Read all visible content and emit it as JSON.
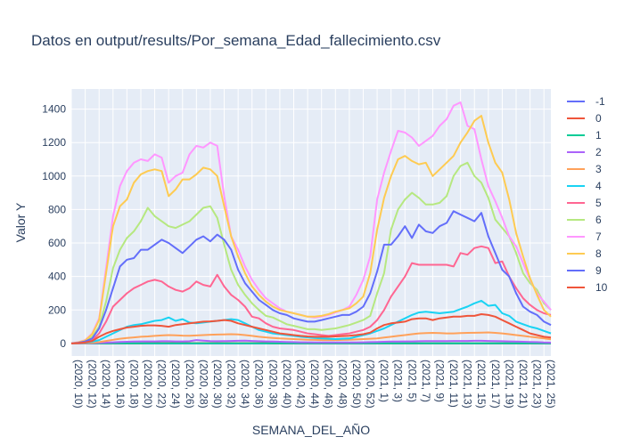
{
  "chart_data": {
    "type": "line",
    "title": "Datos en output/results/Por_semana_Edad_fallecimiento.csv",
    "xlabel": "SEMANA_DEL_AÑO",
    "ylabel": "Valor Y",
    "ylim": [
      -75,
      1520
    ],
    "yticks": [
      0,
      200,
      400,
      600,
      800,
      1000,
      1200,
      1400
    ],
    "grid": true,
    "legend_position": "right",
    "x_tick_labels": [
      "(2020, 10)",
      "(2020, 12)",
      "(2020, 14)",
      "(2020, 16)",
      "(2020, 18)",
      "(2020, 20)",
      "(2020, 22)",
      "(2020, 24)",
      "(2020, 26)",
      "(2020, 28)",
      "(2020, 30)",
      "(2020, 32)",
      "(2020, 34)",
      "(2020, 36)",
      "(2020, 38)",
      "(2020, 40)",
      "(2020, 42)",
      "(2020, 44)",
      "(2020, 46)",
      "(2020, 48)",
      "(2020, 50)",
      "(2020, 52)",
      "(2021, 1)",
      "(2021, 3)",
      "(2021, 5)",
      "(2021, 7)",
      "(2021, 9)",
      "(2021, 11)",
      "(2021, 13)",
      "(2021, 15)",
      "(2021, 17)",
      "(2021, 19)",
      "(2021, 21)",
      "(2021, 23)",
      "(2021, 25)"
    ],
    "x": [
      "(2020, 10)",
      "(2020, 11)",
      "(2020, 12)",
      "(2020, 13)",
      "(2020, 14)",
      "(2020, 15)",
      "(2020, 16)",
      "(2020, 17)",
      "(2020, 18)",
      "(2020, 19)",
      "(2020, 20)",
      "(2020, 21)",
      "(2020, 22)",
      "(2020, 23)",
      "(2020, 24)",
      "(2020, 25)",
      "(2020, 26)",
      "(2020, 27)",
      "(2020, 28)",
      "(2020, 29)",
      "(2020, 30)",
      "(2020, 31)",
      "(2020, 32)",
      "(2020, 33)",
      "(2020, 34)",
      "(2020, 35)",
      "(2020, 36)",
      "(2020, 37)",
      "(2020, 38)",
      "(2020, 39)",
      "(2020, 40)",
      "(2020, 41)",
      "(2020, 42)",
      "(2020, 43)",
      "(2020, 44)",
      "(2020, 45)",
      "(2020, 46)",
      "(2020, 47)",
      "(2020, 48)",
      "(2020, 49)",
      "(2020, 50)",
      "(2020, 51)",
      "(2020, 52)",
      "(2020, 53)",
      "(2021, 1)",
      "(2021, 2)",
      "(2021, 3)",
      "(2021, 4)",
      "(2021, 5)",
      "(2021, 6)",
      "(2021, 7)",
      "(2021, 8)",
      "(2021, 9)",
      "(2021, 10)",
      "(2021, 11)",
      "(2021, 12)",
      "(2021, 13)",
      "(2021, 14)",
      "(2021, 15)",
      "(2021, 16)",
      "(2021, 17)",
      "(2021, 18)",
      "(2021, 19)",
      "(2021, 20)",
      "(2021, 21)",
      "(2021, 22)",
      "(2021, 23)",
      "(2021, 24)",
      "(2021, 25)",
      "(2021, 26)"
    ],
    "series": [
      {
        "name": "-1",
        "color": "#636efa",
        "values": [
          0,
          0,
          0,
          0,
          0,
          0,
          0,
          0,
          0,
          0,
          0,
          0,
          0,
          0,
          0,
          0,
          0,
          0,
          0,
          0,
          0,
          0,
          0,
          0,
          0,
          0,
          0,
          0,
          0,
          0,
          0,
          0,
          0,
          0,
          0,
          0,
          0,
          0,
          0,
          0,
          0,
          0,
          0,
          0,
          0,
          0,
          0,
          0,
          0,
          0,
          0,
          0,
          0,
          0,
          0,
          0,
          0,
          0,
          0,
          0,
          0,
          0,
          0,
          0,
          0,
          0,
          0,
          0,
          0,
          0
        ]
      },
      {
        "name": "0",
        "color": "#ef553b",
        "values": [
          0,
          0,
          0,
          0,
          0,
          0,
          1,
          1,
          1,
          1,
          1,
          2,
          2,
          2,
          2,
          2,
          2,
          2,
          2,
          2,
          2,
          2,
          2,
          2,
          2,
          2,
          2,
          2,
          2,
          1,
          1,
          1,
          1,
          1,
          1,
          1,
          1,
          1,
          1,
          1,
          1,
          1,
          1,
          1,
          1,
          1,
          1,
          1,
          1,
          1,
          1,
          1,
          1,
          1,
          1,
          1,
          1,
          1,
          1,
          1,
          1,
          1,
          1,
          1,
          1,
          1,
          1,
          1,
          1,
          1
        ]
      },
      {
        "name": "1",
        "color": "#00cc96",
        "values": [
          0,
          0,
          0,
          0,
          0,
          0,
          1,
          1,
          1,
          1,
          1,
          1,
          1,
          1,
          1,
          1,
          1,
          1,
          1,
          1,
          1,
          1,
          1,
          1,
          1,
          1,
          1,
          1,
          1,
          1,
          1,
          1,
          1,
          1,
          1,
          1,
          1,
          1,
          1,
          1,
          1,
          1,
          1,
          1,
          1,
          1,
          1,
          1,
          1,
          1,
          1,
          1,
          1,
          1,
          1,
          1,
          1,
          1,
          1,
          1,
          1,
          1,
          1,
          1,
          1,
          1,
          1,
          1,
          1,
          1
        ]
      },
      {
        "name": "2",
        "color": "#ab63fa",
        "values": [
          0,
          0,
          1,
          2,
          3,
          5,
          7,
          9,
          10,
          11,
          12,
          12,
          12,
          13,
          13,
          12,
          12,
          13,
          20,
          17,
          14,
          13,
          14,
          15,
          16,
          17,
          15,
          13,
          12,
          11,
          10,
          9,
          8,
          7,
          7,
          6,
          6,
          6,
          6,
          6,
          6,
          6,
          7,
          8,
          9,
          10,
          11,
          11,
          12,
          12,
          13,
          14,
          14,
          14,
          14,
          15,
          15,
          15,
          16,
          16,
          15,
          14,
          13,
          12,
          11,
          10,
          9,
          8,
          6,
          5
        ]
      },
      {
        "name": "3",
        "color": "#ffa15a",
        "values": [
          0,
          1,
          2,
          4,
          8,
          15,
          22,
          28,
          33,
          36,
          40,
          42,
          45,
          48,
          50,
          49,
          47,
          46,
          48,
          50,
          52,
          53,
          54,
          55,
          54,
          50,
          45,
          40,
          36,
          33,
          30,
          28,
          26,
          24,
          22,
          21,
          20,
          20,
          20,
          21,
          22,
          24,
          26,
          28,
          30,
          35,
          40,
          45,
          50,
          55,
          60,
          62,
          63,
          62,
          60,
          60,
          62,
          63,
          64,
          65,
          66,
          63,
          60,
          55,
          50,
          45,
          40,
          35,
          30,
          25
        ]
      },
      {
        "name": "4",
        "color": "#19d3f3",
        "values": [
          0,
          2,
          5,
          10,
          20,
          40,
          60,
          80,
          100,
          110,
          115,
          125,
          135,
          140,
          155,
          135,
          145,
          125,
          120,
          125,
          130,
          135,
          140,
          145,
          140,
          120,
          100,
          80,
          70,
          60,
          55,
          50,
          45,
          40,
          36,
          33,
          30,
          28,
          26,
          28,
          30,
          40,
          50,
          60,
          75,
          90,
          110,
          130,
          150,
          170,
          185,
          190,
          185,
          180,
          185,
          190,
          205,
          220,
          240,
          255,
          225,
          230,
          180,
          165,
          130,
          115,
          100,
          90,
          75,
          60
        ]
      },
      {
        "name": "5",
        "color": "#ff6692",
        "values": [
          0,
          3,
          8,
          20,
          60,
          130,
          220,
          260,
          300,
          330,
          350,
          370,
          380,
          370,
          340,
          320,
          310,
          330,
          370,
          350,
          340,
          410,
          340,
          290,
          260,
          220,
          160,
          150,
          120,
          100,
          90,
          85,
          80,
          70,
          60,
          55,
          50,
          45,
          50,
          55,
          60,
          70,
          80,
          100,
          140,
          200,
          280,
          340,
          400,
          480,
          470,
          470,
          470,
          470,
          470,
          460,
          540,
          530,
          570,
          580,
          570,
          480,
          490,
          400,
          330,
          270,
          230,
          200,
          180,
          170
        ]
      },
      {
        "name": "6",
        "color": "#b6e880",
        "values": [
          0,
          5,
          15,
          40,
          100,
          250,
          450,
          560,
          630,
          670,
          730,
          810,
          760,
          730,
          700,
          690,
          710,
          730,
          770,
          810,
          820,
          750,
          590,
          440,
          350,
          290,
          240,
          200,
          165,
          155,
          135,
          115,
          105,
          95,
          85,
          85,
          80,
          85,
          90,
          100,
          110,
          125,
          140,
          165,
          300,
          420,
          680,
          800,
          860,
          900,
          870,
          830,
          830,
          840,
          880,
          1000,
          1060,
          1080,
          1000,
          960,
          870,
          740,
          690,
          640,
          540,
          420,
          360,
          320,
          240,
          200
        ]
      },
      {
        "name": "7",
        "color": "#ff97ff",
        "values": [
          0,
          8,
          20,
          60,
          150,
          450,
          760,
          940,
          1030,
          1080,
          1100,
          1090,
          1130,
          1110,
          960,
          1000,
          1020,
          1130,
          1180,
          1170,
          1200,
          1180,
          880,
          640,
          560,
          460,
          380,
          320,
          270,
          240,
          210,
          190,
          180,
          170,
          160,
          155,
          160,
          170,
          185,
          200,
          220,
          290,
          380,
          520,
          860,
          1020,
          1150,
          1270,
          1260,
          1230,
          1180,
          1210,
          1240,
          1300,
          1340,
          1420,
          1440,
          1300,
          1280,
          1100,
          940,
          850,
          750,
          640,
          580,
          480,
          380,
          300,
          250,
          200
        ]
      },
      {
        "name": "8",
        "color": "#fecb52",
        "values": [
          0,
          7,
          18,
          55,
          140,
          420,
          700,
          820,
          860,
          960,
          1010,
          1030,
          1040,
          1030,
          880,
          920,
          980,
          980,
          1010,
          1050,
          1040,
          1000,
          820,
          640,
          520,
          420,
          340,
          290,
          250,
          220,
          200,
          190,
          180,
          170,
          160,
          160,
          165,
          175,
          190,
          200,
          210,
          240,
          280,
          420,
          680,
          870,
          1000,
          1100,
          1120,
          1090,
          1070,
          1080,
          1000,
          1040,
          1080,
          1120,
          1200,
          1260,
          1330,
          1360,
          1200,
          1080,
          1020,
          860,
          660,
          520,
          390,
          290,
          200,
          160
        ]
      },
      {
        "name": "9",
        "color": "#636efa",
        "values": [
          0,
          4,
          12,
          30,
          90,
          200,
          330,
          460,
          500,
          510,
          560,
          560,
          590,
          620,
          600,
          570,
          540,
          580,
          620,
          640,
          610,
          650,
          620,
          560,
          440,
          360,
          310,
          260,
          230,
          200,
          180,
          170,
          150,
          140,
          130,
          130,
          140,
          150,
          160,
          170,
          170,
          190,
          220,
          300,
          430,
          590,
          590,
          640,
          700,
          630,
          710,
          670,
          660,
          700,
          720,
          790,
          770,
          750,
          730,
          780,
          640,
          540,
          440,
          400,
          300,
          220,
          190,
          170,
          130,
          110
        ]
      },
      {
        "name": "10",
        "color": "#ef553b",
        "values": [
          0,
          2,
          6,
          15,
          40,
          60,
          75,
          85,
          95,
          100,
          105,
          108,
          108,
          105,
          100,
          110,
          115,
          120,
          125,
          130,
          132,
          135,
          140,
          135,
          120,
          110,
          100,
          90,
          80,
          70,
          60,
          55,
          50,
          45,
          42,
          40,
          40,
          40,
          42,
          44,
          46,
          50,
          55,
          65,
          90,
          110,
          120,
          125,
          130,
          145,
          150,
          150,
          140,
          150,
          155,
          160,
          160,
          165,
          165,
          175,
          170,
          160,
          140,
          120,
          100,
          80,
          60,
          50,
          40,
          35
        ]
      }
    ]
  }
}
